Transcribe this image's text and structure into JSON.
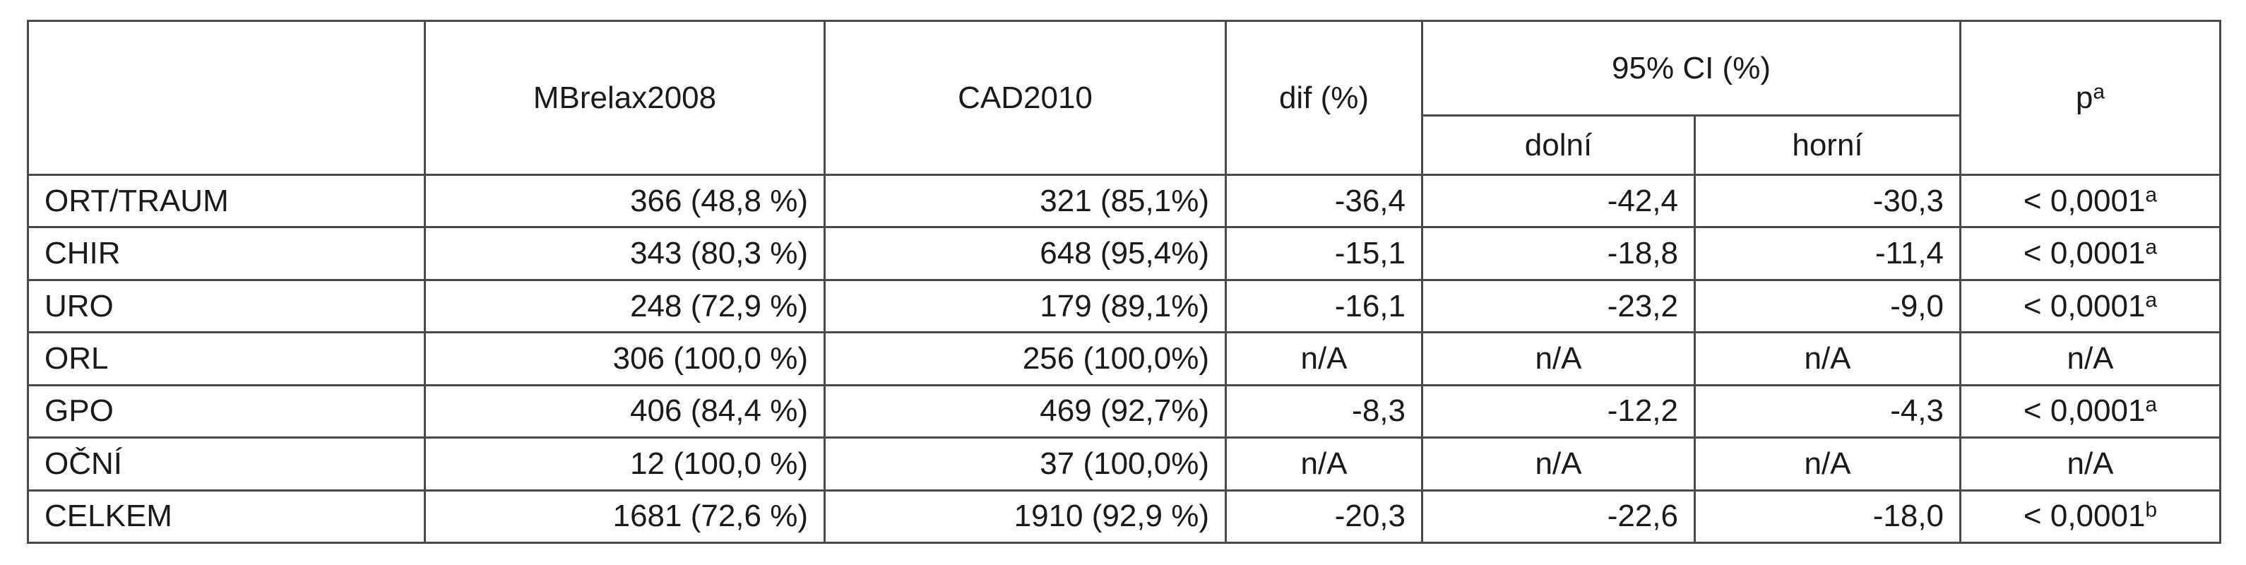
{
  "header": {
    "col_mbrelax": "MBrelax2008",
    "col_cad": "CAD2010",
    "col_dif": "dif (%)",
    "col_ci": "95% CI (%)",
    "col_ci_lower": "dolní",
    "col_ci_upper": "horní",
    "col_p": "p",
    "col_p_sup": "a"
  },
  "rows": [
    {
      "label": "ORT/TRAUM",
      "mbrelax": "366 (48,8 %)",
      "cad": "321 (85,1%)",
      "dif": "-36,4",
      "ci_lower": "-42,4",
      "ci_upper": "-30,3",
      "p": "< 0,0001",
      "p_sup": "a"
    },
    {
      "label": "CHIR",
      "mbrelax": "343 (80,3 %)",
      "cad": "648 (95,4%)",
      "dif": "-15,1",
      "ci_lower": "-18,8",
      "ci_upper": "-11,4",
      "p": "< 0,0001",
      "p_sup": "a"
    },
    {
      "label": "URO",
      "mbrelax": "248 (72,9 %)",
      "cad": "179 (89,1%)",
      "dif": "-16,1",
      "ci_lower": "-23,2",
      "ci_upper": "-9,0",
      "p": "< 0,0001",
      "p_sup": "a"
    },
    {
      "label": "ORL",
      "mbrelax": "306 (100,0 %)",
      "cad": "256 (100,0%)",
      "dif": "n/A",
      "ci_lower": "n/A",
      "ci_upper": "n/A",
      "p": "n/A",
      "p_sup": ""
    },
    {
      "label": "GPO",
      "mbrelax": "406 (84,4 %)",
      "cad": "469 (92,7%)",
      "dif": "-8,3",
      "ci_lower": "-12,2",
      "ci_upper": "-4,3",
      "p": "< 0,0001",
      "p_sup": "a"
    },
    {
      "label": "OČNÍ",
      "mbrelax": "12 (100,0 %)",
      "cad": "37 (100,0%)",
      "dif": "n/A",
      "ci_lower": "n/A",
      "ci_upper": "n/A",
      "p": "n/A",
      "p_sup": ""
    },
    {
      "label": "CELKEM",
      "mbrelax": "1681 (72,6 %)",
      "cad": "1910 (92,9 %)",
      "dif": "-20,3",
      "ci_lower": "-22,6",
      "ci_upper": "-18,0",
      "p": "< 0,0001",
      "p_sup": "b"
    }
  ]
}
